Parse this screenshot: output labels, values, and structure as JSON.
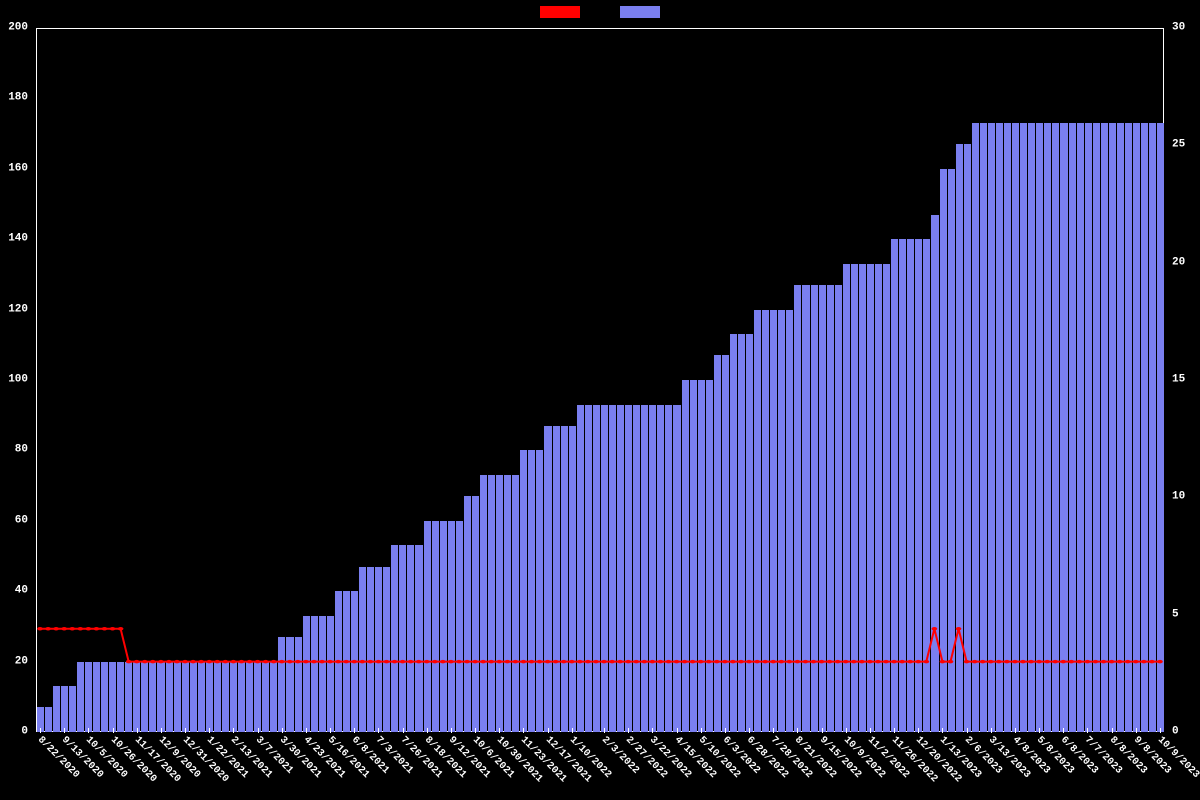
{
  "chart": {
    "type": "bar_and_line_dual_axis",
    "background_color": "#000000",
    "text_color": "#ffffff",
    "font_family": "monospace",
    "font_size_axis": 11,
    "bar_color": "#7a7ff0",
    "line_color": "#ff0000",
    "line_width": 2,
    "marker_size": 3,
    "legend": {
      "position": "top-center",
      "items": [
        {
          "color": "#ff0000",
          "label": ""
        },
        {
          "color": "#7a7ff0",
          "label": ""
        }
      ]
    },
    "y_left": {
      "min": 0,
      "max": 200,
      "step": 20,
      "ticks": [
        0,
        20,
        40,
        60,
        80,
        100,
        120,
        140,
        160,
        180,
        200
      ]
    },
    "y_right": {
      "min": 0,
      "max": 30,
      "step": 5,
      "ticks": [
        0,
        5,
        10,
        15,
        20,
        25,
        30
      ]
    },
    "x_labels_visible": [
      "8/22/2020",
      "9/13/2020",
      "10/5/2020",
      "10/26/2020",
      "11/17/2020",
      "12/9/2020",
      "12/31/2020",
      "1/22/2021",
      "2/13/2021",
      "3/7/2021",
      "3/30/2021",
      "4/23/2021",
      "5/16/2021",
      "6/8/2021",
      "7/3/2021",
      "7/26/2021",
      "8/18/2021",
      "9/12/2021",
      "10/6/2021",
      "10/30/2021",
      "11/23/2021",
      "12/17/2021",
      "1/10/2022",
      "2/3/2022",
      "2/27/2022",
      "3/22/2022",
      "4/15/2022",
      "5/10/2022",
      "6/3/2022",
      "6/28/2022",
      "7/28/2022",
      "8/21/2022",
      "9/15/2022",
      "10/9/2022",
      "11/2/2022",
      "11/26/2022",
      "12/20/2022",
      "1/13/2023",
      "2/6/2023",
      "3/13/2023",
      "4/8/2023",
      "5/8/2023",
      "6/8/2023",
      "7/7/2023",
      "8/8/2023",
      "9/8/2023",
      "10/9/2023"
    ],
    "bar_values": [
      7,
      7,
      13,
      13,
      13,
      20,
      20,
      20,
      20,
      20,
      20,
      20,
      20,
      20,
      20,
      20,
      20,
      20,
      20,
      20,
      20,
      20,
      20,
      20,
      20,
      20,
      20,
      20,
      20,
      20,
      27,
      27,
      27,
      33,
      33,
      33,
      33,
      40,
      40,
      40,
      47,
      47,
      47,
      47,
      53,
      53,
      53,
      53,
      60,
      60,
      60,
      60,
      60,
      67,
      67,
      73,
      73,
      73,
      73,
      73,
      80,
      80,
      80,
      87,
      87,
      87,
      87,
      93,
      93,
      93,
      93,
      93,
      93,
      93,
      93,
      93,
      93,
      93,
      93,
      93,
      100,
      100,
      100,
      100,
      107,
      107,
      113,
      113,
      113,
      120,
      120,
      120,
      120,
      120,
      127,
      127,
      127,
      127,
      127,
      127,
      133,
      133,
      133,
      133,
      133,
      133,
      140,
      140,
      140,
      140,
      140,
      147,
      160,
      160,
      167,
      167,
      173,
      173,
      173,
      173,
      173,
      173,
      173,
      173,
      173,
      173,
      173,
      173,
      173,
      173,
      173,
      173,
      173,
      173,
      173,
      173,
      173,
      173,
      173,
      173
    ],
    "line_values": [
      4.4,
      4.4,
      4.4,
      4.4,
      4.4,
      4.4,
      4.4,
      4.4,
      4.4,
      4.4,
      4.4,
      3,
      3,
      3,
      3,
      3,
      3,
      3,
      3,
      3,
      3,
      3,
      3,
      3,
      3,
      3,
      3,
      3,
      3,
      3,
      3,
      3,
      3,
      3,
      3,
      3,
      3,
      3,
      3,
      3,
      3,
      3,
      3,
      3,
      3,
      3,
      3,
      3,
      3,
      3,
      3,
      3,
      3,
      3,
      3,
      3,
      3,
      3,
      3,
      3,
      3,
      3,
      3,
      3,
      3,
      3,
      3,
      3,
      3,
      3,
      3,
      3,
      3,
      3,
      3,
      3,
      3,
      3,
      3,
      3,
      3,
      3,
      3,
      3,
      3,
      3,
      3,
      3,
      3,
      3,
      3,
      3,
      3,
      3,
      3,
      3,
      3,
      3,
      3,
      3,
      3,
      3,
      3,
      3,
      3,
      3,
      3,
      3,
      3,
      3,
      3,
      4.4,
      3,
      3,
      4.4,
      3,
      3,
      3,
      3,
      3,
      3,
      3,
      3,
      3,
      3,
      3,
      3,
      3,
      3,
      3,
      3,
      3,
      3,
      3,
      3,
      3,
      3,
      3,
      3,
      3
    ]
  }
}
